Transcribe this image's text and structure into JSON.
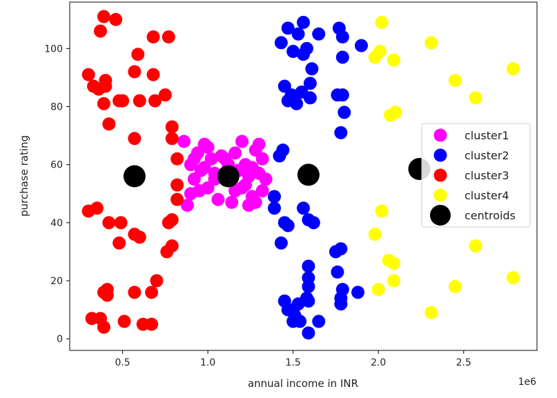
{
  "chart_data": {
    "type": "scatter",
    "title": "",
    "xlabel": "annual income in INR",
    "ylabel": "purchase rating",
    "x_offset_label": "1e6",
    "xlim": [
      0.19,
      2.93
    ],
    "ylim": [
      -4,
      116
    ],
    "x_ticks": [
      {
        "value": 0.5,
        "label": "0.5"
      },
      {
        "value": 1.0,
        "label": "1.0"
      },
      {
        "value": 1.5,
        "label": "1.5"
      },
      {
        "value": 2.0,
        "label": "2.0"
      },
      {
        "value": 2.5,
        "label": "2.5"
      }
    ],
    "y_ticks": [
      {
        "value": 0,
        "label": "0"
      },
      {
        "value": 20,
        "label": "20"
      },
      {
        "value": 40,
        "label": "40"
      },
      {
        "value": 60,
        "label": "60"
      },
      {
        "value": 80,
        "label": "80"
      },
      {
        "value": 100,
        "label": "100"
      }
    ],
    "grid": false,
    "legend_position": "center-right",
    "series": [
      {
        "name": "cluster1",
        "color": "#ff00ff",
        "points": [
          [
            0.86,
            68
          ],
          [
            0.9,
            60
          ],
          [
            0.9,
            50
          ],
          [
            0.92,
            55
          ],
          [
            0.94,
            64
          ],
          [
            0.96,
            58
          ],
          [
            0.98,
            67
          ],
          [
            1.0,
            52
          ],
          [
            1.02,
            62
          ],
          [
            1.04,
            57
          ],
          [
            0.88,
            46
          ],
          [
            0.95,
            51
          ],
          [
            1.0,
            66
          ],
          [
            1.06,
            48
          ],
          [
            1.08,
            63
          ],
          [
            1.1,
            55
          ],
          [
            1.12,
            60
          ],
          [
            1.14,
            47
          ],
          [
            1.16,
            64
          ],
          [
            1.18,
            58
          ],
          [
            1.2,
            52
          ],
          [
            1.22,
            60
          ],
          [
            1.24,
            56
          ],
          [
            1.26,
            49
          ],
          [
            1.28,
            65
          ],
          [
            1.3,
            57
          ],
          [
            1.32,
            62
          ],
          [
            1.28,
            47
          ],
          [
            1.24,
            46
          ],
          [
            1.34,
            55
          ],
          [
            1.3,
            67
          ],
          [
            1.2,
            68
          ],
          [
            1.16,
            51
          ],
          [
            0.98,
            59
          ],
          [
            1.04,
            55
          ],
          [
            1.1,
            62
          ],
          [
            1.22,
            53
          ],
          [
            1.26,
            59
          ],
          [
            1.32,
            51
          ],
          [
            0.92,
            62
          ]
        ]
      },
      {
        "name": "cluster2",
        "color": "#0000ff",
        "points": [
          [
            1.43,
            102
          ],
          [
            1.47,
            107
          ],
          [
            1.5,
            99
          ],
          [
            1.53,
            105
          ],
          [
            1.56,
            109
          ],
          [
            1.58,
            100
          ],
          [
            1.61,
            93
          ],
          [
            1.65,
            105
          ],
          [
            1.56,
            98
          ],
          [
            1.6,
            88
          ],
          [
            1.77,
            107
          ],
          [
            1.79,
            104
          ],
          [
            1.79,
            97
          ],
          [
            1.9,
            101
          ],
          [
            1.45,
            87
          ],
          [
            1.49,
            84
          ],
          [
            1.52,
            81
          ],
          [
            1.55,
            85
          ],
          [
            1.6,
            83
          ],
          [
            1.76,
            84
          ],
          [
            1.79,
            84
          ],
          [
            1.8,
            78
          ],
          [
            1.78,
            71
          ],
          [
            1.42,
            63
          ],
          [
            1.44,
            65
          ],
          [
            1.39,
            49
          ],
          [
            1.39,
            45
          ],
          [
            1.45,
            40
          ],
          [
            1.47,
            39
          ],
          [
            1.56,
            45
          ],
          [
            1.59,
            41
          ],
          [
            1.62,
            40
          ],
          [
            1.43,
            33
          ],
          [
            1.59,
            25
          ],
          [
            1.59,
            21
          ],
          [
            1.59,
            18
          ],
          [
            1.58,
            14
          ],
          [
            1.59,
            13
          ],
          [
            1.75,
            30
          ],
          [
            1.78,
            31
          ],
          [
            1.76,
            23
          ],
          [
            1.79,
            17
          ],
          [
            1.78,
            14
          ],
          [
            1.78,
            12
          ],
          [
            1.88,
            16
          ],
          [
            1.45,
            13
          ],
          [
            1.47,
            10
          ],
          [
            1.5,
            10
          ],
          [
            1.53,
            12
          ],
          [
            1.51,
            8
          ],
          [
            1.5,
            6
          ],
          [
            1.54,
            6
          ],
          [
            1.65,
            6
          ],
          [
            1.59,
            2
          ],
          [
            1.47,
            82
          ]
        ]
      },
      {
        "name": "cluster3",
        "color": "#ff0000",
        "points": [
          [
            0.39,
            111
          ],
          [
            0.46,
            110
          ],
          [
            0.37,
            106
          ],
          [
            0.77,
            104
          ],
          [
            0.59,
            98
          ],
          [
            0.68,
            104
          ],
          [
            0.3,
            91
          ],
          [
            0.57,
            92
          ],
          [
            0.68,
            91
          ],
          [
            0.33,
            87
          ],
          [
            0.36,
            86
          ],
          [
            0.4,
            89
          ],
          [
            0.4,
            87
          ],
          [
            0.48,
            82
          ],
          [
            0.5,
            82
          ],
          [
            0.6,
            82
          ],
          [
            0.69,
            82
          ],
          [
            0.75,
            84
          ],
          [
            0.39,
            81
          ],
          [
            0.42,
            74
          ],
          [
            0.79,
            73
          ],
          [
            0.57,
            69
          ],
          [
            0.79,
            69
          ],
          [
            0.82,
            62
          ],
          [
            0.82,
            53
          ],
          [
            0.82,
            48
          ],
          [
            0.3,
            44
          ],
          [
            0.35,
            45
          ],
          [
            0.42,
            40
          ],
          [
            0.49,
            40
          ],
          [
            0.57,
            36
          ],
          [
            0.6,
            35
          ],
          [
            0.77,
            40
          ],
          [
            0.79,
            41
          ],
          [
            0.48,
            33
          ],
          [
            0.76,
            30
          ],
          [
            0.79,
            32
          ],
          [
            0.67,
            16
          ],
          [
            0.7,
            20
          ],
          [
            0.4,
            16
          ],
          [
            0.41,
            17
          ],
          [
            0.41,
            15
          ],
          [
            0.39,
            16
          ],
          [
            0.57,
            16
          ],
          [
            0.32,
            7
          ],
          [
            0.37,
            7
          ],
          [
            0.39,
            4
          ],
          [
            0.51,
            6
          ],
          [
            0.62,
            5
          ],
          [
            0.67,
            5
          ]
        ]
      },
      {
        "name": "cluster4",
        "color": "#ffff00",
        "points": [
          [
            2.02,
            109
          ],
          [
            1.98,
            97
          ],
          [
            2.01,
            99
          ],
          [
            2.09,
            96
          ],
          [
            2.31,
            102
          ],
          [
            2.79,
            93
          ],
          [
            2.45,
            89
          ],
          [
            2.57,
            83
          ],
          [
            2.07,
            77
          ],
          [
            2.1,
            78
          ],
          [
            2.02,
            44
          ],
          [
            1.98,
            36
          ],
          [
            2.06,
            27
          ],
          [
            2.09,
            26
          ],
          [
            2.09,
            20
          ],
          [
            2.0,
            17
          ],
          [
            2.45,
            18
          ],
          [
            2.57,
            32
          ],
          [
            2.79,
            21
          ],
          [
            2.31,
            9
          ]
        ]
      },
      {
        "name": "centroids",
        "color": "#000000",
        "points": [
          [
            0.57,
            56
          ],
          [
            1.12,
            56
          ],
          [
            1.59,
            56.5
          ],
          [
            2.24,
            58.5
          ]
        ]
      }
    ]
  }
}
